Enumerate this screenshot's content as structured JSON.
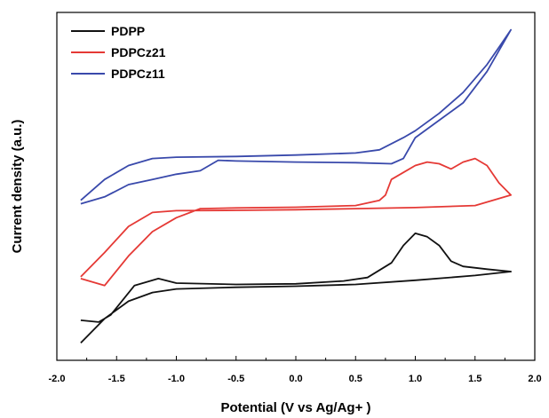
{
  "chart_data": {
    "type": "line",
    "title": "",
    "xlabel": "Potential (V vs Ag/Ag+ )",
    "ylabel": "Current density (a.u.)",
    "xlim": [
      -2.0,
      2.0
    ],
    "ylim": [
      0,
      100
    ],
    "x_tick_labels": [
      "-2.0",
      "-1.5",
      "-1.0",
      "-0.5",
      "0.0",
      "0.5",
      "1.0",
      "1.5",
      "2.0"
    ],
    "y_tick_labels": [],
    "grid": false,
    "legend_position": "top-left",
    "series": [
      {
        "name": "PDPP",
        "color": "#111111",
        "points": [
          [
            -1.8,
            5.0
          ],
          [
            -1.6,
            12.0
          ],
          [
            -1.4,
            17.0
          ],
          [
            -1.2,
            19.5
          ],
          [
            -1.0,
            20.5
          ],
          [
            -0.5,
            21.0
          ],
          [
            0.0,
            21.3
          ],
          [
            0.5,
            21.8
          ],
          [
            1.0,
            23.0
          ],
          [
            1.5,
            24.4
          ],
          [
            1.8,
            25.5
          ],
          [
            1.6,
            26.2
          ],
          [
            1.4,
            27.0
          ],
          [
            1.3,
            28.5
          ],
          [
            1.2,
            33.0
          ],
          [
            1.1,
            35.5
          ],
          [
            1.0,
            36.5
          ],
          [
            0.9,
            33.0
          ],
          [
            0.8,
            28.0
          ],
          [
            0.6,
            23.8
          ],
          [
            0.4,
            22.8
          ],
          [
            0.0,
            22.0
          ],
          [
            -0.5,
            21.8
          ],
          [
            -1.0,
            22.2
          ],
          [
            -1.15,
            23.5
          ],
          [
            -1.35,
            21.5
          ],
          [
            -1.55,
            13.0
          ],
          [
            -1.65,
            11.0
          ],
          [
            -1.8,
            11.5
          ]
        ]
      },
      {
        "name": "PDPCz21",
        "color": "#e53935",
        "points": [
          [
            -1.8,
            24.0
          ],
          [
            -1.6,
            31.0
          ],
          [
            -1.4,
            38.5
          ],
          [
            -1.2,
            42.5
          ],
          [
            -1.0,
            43.0
          ],
          [
            -0.5,
            43.1
          ],
          [
            0.0,
            43.3
          ],
          [
            0.5,
            43.6
          ],
          [
            1.0,
            43.9
          ],
          [
            1.5,
            44.5
          ],
          [
            1.8,
            47.5
          ],
          [
            1.7,
            51.0
          ],
          [
            1.6,
            56.0
          ],
          [
            1.5,
            58.0
          ],
          [
            1.4,
            57.0
          ],
          [
            1.3,
            55.0
          ],
          [
            1.2,
            56.5
          ],
          [
            1.1,
            57.0
          ],
          [
            1.0,
            56.0
          ],
          [
            0.9,
            54.0
          ],
          [
            0.8,
            52.0
          ],
          [
            0.75,
            47.5
          ],
          [
            0.7,
            46.0
          ],
          [
            0.5,
            44.5
          ],
          [
            0.0,
            44.0
          ],
          [
            -0.5,
            43.8
          ],
          [
            -0.8,
            43.6
          ],
          [
            -1.0,
            41.0
          ],
          [
            -1.2,
            37.0
          ],
          [
            -1.4,
            30.0
          ],
          [
            -1.6,
            21.5
          ],
          [
            -1.8,
            23.5
          ]
        ]
      },
      {
        "name": "PDPCz11",
        "color": "#3949ab",
        "points": [
          [
            -1.8,
            46.0
          ],
          [
            -1.6,
            52.0
          ],
          [
            -1.4,
            56.0
          ],
          [
            -1.2,
            58.0
          ],
          [
            -1.0,
            58.4
          ],
          [
            -0.5,
            58.6
          ],
          [
            0.0,
            59.0
          ],
          [
            0.5,
            59.6
          ],
          [
            0.7,
            60.5
          ],
          [
            0.9,
            64.0
          ],
          [
            1.0,
            66.0
          ],
          [
            1.2,
            71.0
          ],
          [
            1.4,
            77.0
          ],
          [
            1.6,
            85.0
          ],
          [
            1.7,
            90.0
          ],
          [
            1.8,
            95.0
          ],
          [
            1.6,
            83.0
          ],
          [
            1.4,
            74.0
          ],
          [
            1.2,
            69.0
          ],
          [
            1.0,
            64.0
          ],
          [
            0.9,
            58.0
          ],
          [
            0.8,
            56.5
          ],
          [
            0.5,
            56.8
          ],
          [
            0.0,
            57.0
          ],
          [
            -0.5,
            57.3
          ],
          [
            -0.65,
            57.5
          ],
          [
            -0.8,
            54.5
          ],
          [
            -1.0,
            53.5
          ],
          [
            -1.2,
            52.0
          ],
          [
            -1.4,
            50.5
          ],
          [
            -1.6,
            47.0
          ],
          [
            -1.8,
            45.0
          ]
        ]
      }
    ]
  }
}
